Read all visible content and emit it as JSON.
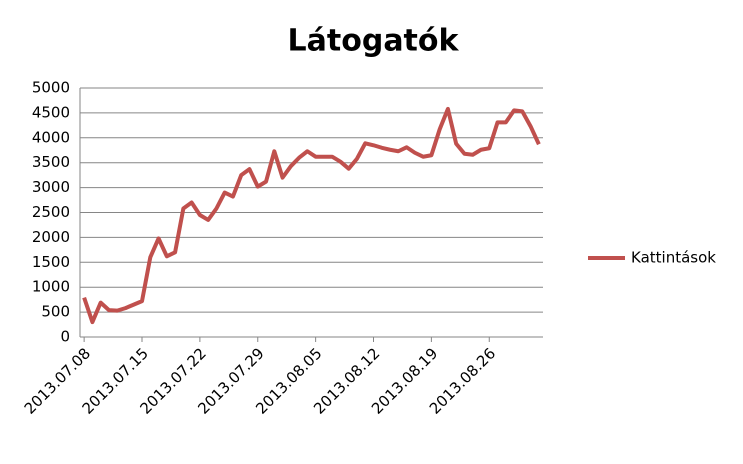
{
  "chart_data": {
    "type": "line",
    "title": "Látogatók",
    "categories": [
      "2013.07.08",
      null,
      null,
      null,
      null,
      null,
      null,
      "2013.07.15",
      null,
      null,
      null,
      null,
      null,
      null,
      "2013.07.22",
      null,
      null,
      null,
      null,
      null,
      null,
      "2013.07.29",
      null,
      null,
      null,
      null,
      null,
      null,
      "2013.08.05",
      null,
      null,
      null,
      null,
      null,
      null,
      "2013.08.12",
      null,
      null,
      null,
      null,
      null,
      null,
      "2013.08.19",
      null,
      null,
      null,
      null,
      null,
      null,
      "2013.08.26",
      null,
      null,
      null,
      null,
      null,
      null
    ],
    "series": [
      {
        "name": "Kattintások",
        "color": "#c0504d",
        "values": [
          790,
          300,
          690,
          540,
          530,
          580,
          650,
          720,
          1600,
          1980,
          1620,
          1700,
          2580,
          2700,
          2450,
          2350,
          2580,
          2900,
          2820,
          3250,
          3370,
          3020,
          3120,
          3730,
          3200,
          3430,
          3600,
          3730,
          3620,
          3620,
          3620,
          3520,
          3380,
          3580,
          3890,
          3850,
          3800,
          3760,
          3730,
          3810,
          3700,
          3620,
          3650,
          4170,
          4580,
          3880,
          3680,
          3660,
          3760,
          3790,
          4310,
          4310,
          4550,
          4530,
          4230,
          3870
        ]
      }
    ],
    "ylim": [
      0,
      5000
    ],
    "yticks": [
      0,
      500,
      1000,
      1500,
      2000,
      2500,
      3000,
      3500,
      4000,
      4500,
      5000
    ],
    "grid": true,
    "legend": "right"
  }
}
